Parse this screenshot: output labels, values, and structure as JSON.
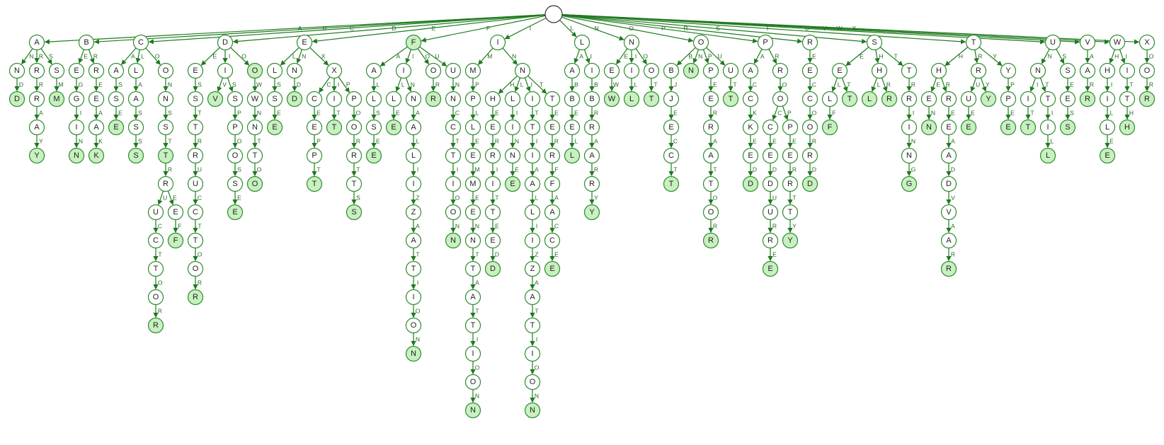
{
  "diagram": {
    "type": "trie",
    "colors": {
      "edge": "#1f7a1f",
      "node_stroke": "#2e8b2e",
      "terminal_fill": "#c8f0c0",
      "node_fill": "#ffffff"
    },
    "words": [
      "AND",
      "ARRAY",
      "ASM",
      "BEGIN",
      "BREAK",
      "CASE",
      "CLASS",
      "CONST",
      "CONSTRUCTOR",
      "CONSTREF",
      "DESTRUCTOR",
      "DIV",
      "DO",
      "DOWNTO",
      "DISPOSE",
      "ELSE",
      "END",
      "EXCEPT",
      "EXIT",
      "EXPORTS",
      "FALSE",
      "FILE",
      "FINALIZATION",
      "FOR",
      "FUNCTION",
      "F",
      "IMPLEMENTATION",
      "INHERITED",
      "INLINE",
      "INITIALIZATION",
      "INTERFACE",
      "LABEL",
      "LIBRARY",
      "NEW",
      "NIL",
      "NOT",
      "OBJECT",
      "ON",
      "OPERATOR",
      "OUT",
      "PACKED",
      "PROCEDURE",
      "PROPERTY",
      "RECORD",
      "SELF",
      "SET",
      "SHL",
      "SHR",
      "STRING",
      "THEN",
      "THREADVAR",
      "TRUE",
      "TRY",
      "TYPE",
      "UNIT",
      "UNTIL",
      "USES",
      "VAR",
      "WHILE",
      "WITH",
      "XOR"
    ]
  }
}
